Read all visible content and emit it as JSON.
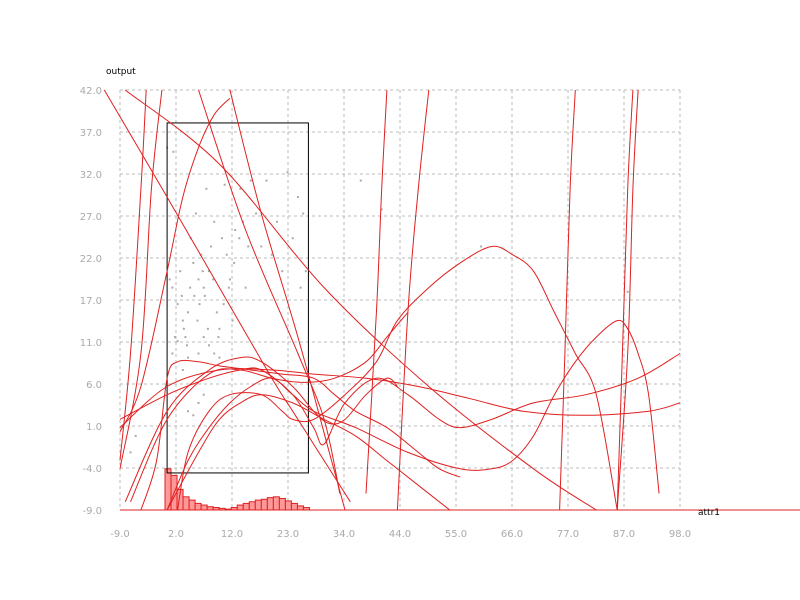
{
  "chart_data": {
    "type": "line",
    "xlabel": "attr1",
    "ylabel": "output",
    "xlim": [
      -9.0,
      98.0
    ],
    "ylim": [
      -9.0,
      42.0
    ],
    "xticks": [
      "-9.0",
      "2.0",
      "12.0",
      "23.0",
      "34.0",
      "44.0",
      "55.0",
      "66.0",
      "77.0",
      "87.0",
      "98.0"
    ],
    "yticks": [
      "-9.0",
      "-4.0",
      "1.0",
      "6.0",
      "11.0",
      "17.0",
      "22.0",
      "27.0",
      "32.0",
      "37.0",
      "42.0"
    ],
    "grid": true,
    "colors": {
      "curve": "#e02020",
      "hist_fill": "#ff9999",
      "hist_stroke": "#e02020",
      "scatter": "#aaaaaa",
      "box": "#000000",
      "grid": "#bbbbbb",
      "tick": "#aaaaaa"
    },
    "box": {
      "x": [
        0.0,
        27.0
      ],
      "y": [
        -4.5,
        38.0
      ]
    },
    "curves": [
      [
        [
          -9,
          0.5
        ],
        [
          -5,
          6
        ],
        [
          0,
          20
        ],
        [
          3,
          29
        ],
        [
          6,
          35
        ],
        [
          9,
          39
        ],
        [
          12,
          41
        ]
      ],
      [
        [
          -9,
          -4
        ],
        [
          -5,
          10
        ],
        [
          -3,
          30
        ],
        [
          -1,
          42
        ]
      ],
      [
        [
          -9,
          -3
        ],
        [
          -7,
          10
        ],
        [
          -5,
          30
        ],
        [
          -4,
          42
        ]
      ],
      [
        [
          -12,
          42
        ],
        [
          0,
          29
        ],
        [
          10,
          18
        ],
        [
          20,
          7
        ],
        [
          24,
          3
        ],
        [
          28,
          -1
        ],
        [
          32,
          -5
        ],
        [
          35,
          -8
        ]
      ],
      [
        [
          -8,
          42
        ],
        [
          10,
          33
        ],
        [
          30,
          18
        ],
        [
          50,
          6
        ],
        [
          70,
          -4
        ],
        [
          82,
          -9
        ]
      ],
      [
        [
          6,
          42
        ],
        [
          15,
          25
        ],
        [
          25,
          10
        ],
        [
          30,
          2
        ],
        [
          33,
          -7
        ]
      ],
      [
        [
          12,
          42
        ],
        [
          18,
          27
        ],
        [
          25,
          12
        ],
        [
          31,
          -2
        ],
        [
          34,
          -9
        ]
      ],
      [
        [
          -8,
          -8
        ],
        [
          0,
          3
        ],
        [
          8,
          8
        ],
        [
          14,
          9.5
        ],
        [
          18,
          9
        ],
        [
          24,
          6
        ],
        [
          28,
          3
        ],
        [
          31,
          1.5
        ],
        [
          34,
          2
        ],
        [
          38,
          5
        ],
        [
          42,
          7
        ],
        [
          44,
          6
        ]
      ],
      [
        [
          -7,
          -8
        ],
        [
          0,
          2
        ],
        [
          8,
          7.5
        ],
        [
          14,
          8
        ],
        [
          20,
          7
        ],
        [
          26,
          6.5
        ],
        [
          32,
          7
        ],
        [
          38,
          9
        ],
        [
          42,
          12
        ],
        [
          46,
          15
        ]
      ],
      [
        [
          -9,
          1
        ],
        [
          0,
          6
        ],
        [
          10,
          8
        ],
        [
          20,
          8
        ],
        [
          28,
          7.5
        ],
        [
          38,
          7
        ],
        [
          48,
          6
        ],
        [
          58,
          4.5
        ],
        [
          68,
          3
        ],
        [
          80,
          2.5
        ],
        [
          92,
          3
        ],
        [
          98,
          4
        ]
      ],
      [
        [
          -9,
          2
        ],
        [
          0,
          5
        ],
        [
          8,
          7
        ],
        [
          14,
          8
        ],
        [
          18,
          8
        ],
        [
          24,
          5
        ],
        [
          28,
          1
        ],
        [
          30,
          -1
        ],
        [
          34,
          4
        ],
        [
          40,
          7
        ],
        [
          46,
          5
        ],
        [
          52,
          2
        ],
        [
          56,
          1
        ],
        [
          62,
          2
        ],
        [
          70,
          4
        ],
        [
          80,
          5
        ],
        [
          90,
          7
        ],
        [
          98,
          10
        ]
      ],
      [
        [
          -5,
          -9
        ],
        [
          -2,
          -3
        ],
        [
          0,
          7
        ],
        [
          2,
          9
        ],
        [
          6,
          9
        ],
        [
          10,
          8.5
        ],
        [
          16,
          8
        ],
        [
          22,
          7.5
        ],
        [
          28,
          7
        ],
        [
          32,
          5
        ],
        [
          36,
          3
        ],
        [
          42,
          1
        ],
        [
          48,
          -2
        ],
        [
          52,
          -4
        ],
        [
          56,
          -5
        ]
      ],
      [
        [
          2,
          -9
        ],
        [
          4,
          -2
        ],
        [
          8,
          3
        ],
        [
          12,
          5
        ],
        [
          18,
          5
        ],
        [
          22,
          3
        ],
        [
          24,
          2
        ],
        [
          28,
          2
        ],
        [
          34,
          5
        ],
        [
          40,
          9
        ],
        [
          44,
          14
        ],
        [
          50,
          18
        ],
        [
          56,
          21
        ],
        [
          62,
          23
        ],
        [
          66,
          22
        ],
        [
          70,
          20
        ],
        [
          74,
          15
        ],
        [
          78,
          10
        ],
        [
          82,
          5
        ],
        [
          86,
          -9
        ]
      ],
      [
        [
          0,
          -9
        ],
        [
          4,
          -3
        ],
        [
          8,
          1
        ],
        [
          12,
          4
        ],
        [
          16,
          6
        ],
        [
          20,
          7
        ],
        [
          24,
          5
        ],
        [
          28,
          3
        ],
        [
          36,
          1
        ],
        [
          46,
          -2
        ],
        [
          56,
          -4
        ],
        [
          62,
          -4
        ],
        [
          66,
          -3
        ],
        [
          70,
          0
        ],
        [
          74,
          5
        ],
        [
          78,
          9
        ],
        [
          82,
          12
        ],
        [
          86,
          14
        ],
        [
          88,
          13
        ],
        [
          90,
          10
        ],
        [
          92,
          5
        ],
        [
          94,
          -7
        ]
      ],
      [
        [
          0,
          -9
        ],
        [
          6,
          -2
        ],
        [
          10,
          2
        ],
        [
          14,
          4
        ],
        [
          18,
          5
        ],
        [
          24,
          4
        ],
        [
          30,
          2
        ],
        [
          36,
          0
        ],
        [
          42,
          -3
        ],
        [
          48,
          -6
        ],
        [
          54,
          -9
        ]
      ],
      [
        [
          38,
          -7
        ],
        [
          40,
          15
        ],
        [
          41,
          30
        ],
        [
          42,
          42
        ]
      ],
      [
        [
          44,
          -9
        ],
        [
          46,
          15
        ],
        [
          48,
          30
        ],
        [
          50,
          42
        ]
      ],
      [
        [
          75,
          -9
        ],
        [
          76,
          10
        ],
        [
          77,
          30
        ],
        [
          78,
          42
        ]
      ],
      [
        [
          86,
          -9
        ],
        [
          87,
          10
        ],
        [
          88,
          30
        ],
        [
          89,
          42
        ]
      ],
      [
        [
          86,
          -9
        ],
        [
          88,
          10
        ],
        [
          89,
          30
        ],
        [
          90,
          42
        ]
      ]
    ],
    "histogram": {
      "bin_start": -0.4,
      "bin_width": 1.15,
      "counts": [
        5,
        4.2,
        2.5,
        1.6,
        1.2,
        0.8,
        0.6,
        0.4,
        0.3,
        0.2,
        0.1,
        0.3,
        0.6,
        0.8,
        1.0,
        1.2,
        1.3,
        1.5,
        1.6,
        1.4,
        1.1,
        0.8,
        0.5,
        0.3
      ]
    },
    "scatter": [
      [
        1.2,
        34.5
      ],
      [
        2.5,
        20
      ],
      [
        3,
        14
      ],
      [
        3.5,
        12
      ],
      [
        4,
        15
      ],
      [
        4.5,
        24
      ],
      [
        5,
        21
      ],
      [
        5.5,
        27
      ],
      [
        6,
        19
      ],
      [
        6.2,
        16
      ],
      [
        6.5,
        22
      ],
      [
        7,
        18
      ],
      [
        7.2,
        17
      ],
      [
        7.5,
        30
      ],
      [
        8,
        20
      ],
      [
        8.4,
        23
      ],
      [
        9,
        26
      ],
      [
        9.5,
        15
      ],
      [
        10,
        13
      ],
      [
        10.5,
        24
      ],
      [
        11,
        30.5
      ],
      [
        11.4,
        22
      ],
      [
        12,
        19
      ],
      [
        12.5,
        14
      ],
      [
        13,
        25
      ],
      [
        14,
        30
      ],
      [
        14.5,
        26
      ],
      [
        15,
        18
      ],
      [
        16,
        31
      ],
      [
        17,
        27
      ],
      [
        18,
        23
      ],
      [
        19,
        31
      ],
      [
        20,
        22
      ],
      [
        21,
        26
      ],
      [
        22,
        20
      ],
      [
        23,
        32
      ],
      [
        24,
        24
      ],
      [
        25,
        29
      ],
      [
        25.5,
        18
      ],
      [
        26,
        27
      ],
      [
        26.5,
        20
      ],
      [
        0,
        35
      ],
      [
        0.5,
        19
      ],
      [
        1,
        18
      ],
      [
        1.5,
        12
      ],
      [
        2,
        16
      ],
      [
        2.8,
        17
      ],
      [
        3.2,
        13
      ],
      [
        3.8,
        11
      ],
      [
        4.4,
        18
      ],
      [
        5.2,
        17
      ],
      [
        5.8,
        14
      ],
      [
        6.8,
        20
      ],
      [
        7.8,
        13
      ],
      [
        8.8,
        19
      ],
      [
        9.8,
        12
      ],
      [
        10.8,
        16
      ],
      [
        11.8,
        18
      ],
      [
        12.8,
        21
      ],
      [
        13.8,
        24
      ],
      [
        15.5,
        23
      ],
      [
        4,
        3
      ],
      [
        5,
        2.5
      ],
      [
        6,
        4
      ],
      [
        7,
        5
      ],
      [
        37,
        31
      ],
      [
        41,
        27.5
      ],
      [
        60,
        23
      ],
      [
        88,
        17.5
      ],
      [
        -6,
        0
      ],
      [
        -7,
        -2
      ],
      [
        3,
        8
      ],
      [
        4,
        9.5
      ],
      [
        1,
        10
      ],
      [
        2,
        11.5
      ],
      [
        8,
        11
      ],
      [
        9,
        10
      ],
      [
        10,
        9.5
      ],
      [
        6,
        10
      ],
      [
        7,
        12
      ]
    ]
  }
}
